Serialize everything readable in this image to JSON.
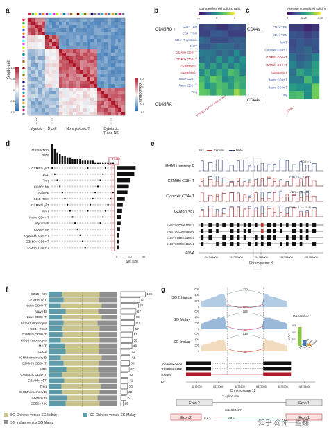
{
  "panels": {
    "a": "a",
    "b": "b",
    "c": "c",
    "d": "d",
    "e": "e",
    "f": "f",
    "g": "g"
  },
  "colors": {
    "red": "#b2182b",
    "blue": "#2166ac",
    "mid": "#f7f7f7",
    "yellow": "#c9c48e",
    "teal": "#5e9aa8",
    "grey": "#8f8f8f",
    "female": "#c0392b",
    "male": "#2a3d7a"
  },
  "chart_data": [
    {
      "id": "a",
      "type": "heatmap",
      "left_label": "Single-cell",
      "right_label": "Pseudobulk",
      "groups": [
        "Myeloid",
        "B cell",
        "Noncytotoxic T",
        "Cytotoxic T and NK"
      ],
      "colorbar_ticks": [
        "1.0",
        "0.5",
        "0",
        "-0.5",
        "-1.0"
      ],
      "blocks": [
        {
          "name": "Myeloid",
          "start": 0,
          "end": 5
        },
        {
          "name": "B cell",
          "start": 5,
          "end": 9
        },
        {
          "name": "Noncytotoxic T",
          "start": 9,
          "end": 20
        },
        {
          "name": "Cytotoxic T and NK",
          "start": 20,
          "end": 28
        }
      ]
    },
    {
      "id": "b",
      "type": "heatmap",
      "title": "log2 transformed splicing ratio",
      "colorbar_ticks": [
        "-1",
        "0",
        "1"
      ],
      "top_label": "CD45RO ↑",
      "bottom_label": "CD45RA ↑",
      "rows": [
        "CD4+ TEM",
        "CD4+ TCM",
        "CD4+ T cytotoxic",
        "MAIT",
        "GZMBhi CD8+ T",
        "GZMKhi CD8+ T",
        "GZMBhi γδT",
        "GZMKhi γδT",
        "Naive CD4+ T",
        "Naive CD8+ T",
        "Treg"
      ],
      "cols": [
        "c1",
        "c2",
        "c3",
        "c4",
        "c5",
        "c6",
        "c7",
        "c8"
      ],
      "x_annotation": "PTPRC exon 4 / exon 5 ratio"
    },
    {
      "id": "c",
      "type": "heatmap",
      "title": "Average normalized splicing",
      "colorbar_ticks": [
        "0",
        "0.25",
        "0.50"
      ],
      "top_label": "CD44s ↓",
      "bottom_label": "CD44s ↑",
      "rows": [
        "CD4+ TEM",
        "CD4+ TCM",
        "MAIT",
        "Cytotoxic CD4+ T",
        "GZMBhi CD8+ T",
        "GZMKhi CD8+ T",
        "GZMBhi γδT",
        "Naive CD4+ T",
        "Naive CD8+ T",
        "Treg"
      ],
      "cols": [
        "c1",
        "c2",
        "c3",
        "c4"
      ],
      "x_annotation": "CD44"
    },
    {
      "id": "d",
      "type": "bar",
      "ylabel": "Intersection size",
      "xlabel": "Set size",
      "highlight": "FLNA",
      "sets": [
        "GZMBhi γδT",
        "pDC",
        "Treg",
        "CD16+ NK",
        "Naive B",
        "CD4+ TEM",
        "GZMKhi γδT",
        "MAIT",
        "Naive CD4+ T",
        "Atypical B",
        "CD56+ NK",
        "Cytotoxic CD4+ T",
        "GZMKhi CD8+ T",
        "GZMBhi CD8+ T"
      ],
      "set_sizes": [
        28,
        26,
        20,
        18,
        16,
        12,
        9,
        8,
        7,
        6,
        5,
        4,
        3,
        3
      ],
      "intersection_sizes": [
        12,
        9,
        7,
        6,
        5,
        5,
        4,
        4,
        3,
        3,
        3,
        3,
        2,
        2,
        2,
        2,
        2,
        1,
        1,
        1,
        1,
        1,
        1,
        1,
        1
      ],
      "set_size_ticks": [
        "0",
        "20",
        "40"
      ]
    },
    {
      "id": "e",
      "type": "area",
      "legend": {
        "title": "Sex",
        "female": "Female",
        "male": "Male"
      },
      "tracks": [
        {
          "name": "IGHMhi memory B",
          "fdr": "FDR = 1"
        },
        {
          "name": "GZMBhi CD8+ T",
          "fdr": "FDR = 2.1 × 10⁻¹⁰"
        },
        {
          "name": "Cytotoxic CD4+ T",
          "fdr": "FDR = 4.6 × 10⁻⁸"
        },
        {
          "name": "GZMBhi γδT",
          "fdr": "FDR = 1.4 × 10⁻¹⁵"
        }
      ],
      "transcripts": [
        "ENST00000610817",
        "ENST00000498491",
        "ENST00000422373",
        "ENST00000415241"
      ],
      "gene": "FLNA",
      "xlabel": "Chromosome X",
      "x_ticks": [
        "154348000",
        "154350000",
        "154352000",
        "154354000",
        "154356000"
      ],
      "xlim": [
        154347000,
        154357000
      ]
    },
    {
      "id": "f",
      "type": "bar",
      "categories": [
        "CD16+ NK",
        "GZMBhi γδT",
        "Naive CD4+ T",
        "Naive B",
        "Naive CD8+ T",
        "CD14+ monocyte",
        "CD4+ TCM",
        "GZMBhi CD8+ T",
        "CD16+ monocyte",
        "MAIT",
        "cDC2",
        "IGHMhi memory B",
        "GZMKhi CD8+ T",
        "pDC",
        "Cytotoxic CD4+ T",
        "GZMKhi γδT",
        "Treg",
        "IGHMhi memory B",
        "Atypical B",
        "CD56+ NK"
      ],
      "counts": [
        108,
        83,
        77,
        67,
        60,
        60,
        57,
        51,
        50,
        49,
        42,
        41,
        38,
        37,
        32,
        31,
        30,
        28,
        22,
        10
      ],
      "series": [
        {
          "name": "SG Chinese versus SG Indian",
          "values": [
            0.55,
            0.52,
            0.6,
            0.48,
            0.58,
            0.5,
            0.55,
            0.53,
            0.57,
            0.5,
            0.49,
            0.6,
            0.52,
            0.47,
            0.55,
            0.51,
            0.58,
            0.55,
            0.45,
            0.5
          ]
        },
        {
          "name": "SG Chinese versus SG Malay",
          "values": [
            0.2,
            0.22,
            0.18,
            0.25,
            0.2,
            0.22,
            0.2,
            0.21,
            0.18,
            0.24,
            0.25,
            0.18,
            0.22,
            0.26,
            0.2,
            0.23,
            0.19,
            0.2,
            0.27,
            0.25
          ]
        },
        {
          "name": "SG Indian versus SG Malay",
          "values": [
            0.25,
            0.26,
            0.22,
            0.27,
            0.22,
            0.28,
            0.25,
            0.26,
            0.25,
            0.26,
            0.26,
            0.22,
            0.26,
            0.27,
            0.25,
            0.26,
            0.23,
            0.25,
            0.28,
            0.25
          ]
        }
      ]
    },
    {
      "id": "g",
      "type": "area",
      "groups": [
        "SG Chinese",
        "SG Malay",
        "SG Indian"
      ],
      "junction_top": [
        "110",
        "168",
        "235"
      ],
      "junction_bottom": [
        "162",
        "69",
        "15"
      ],
      "y_ticks": [
        "600",
        "400",
        "200",
        "0"
      ],
      "maf": {
        "snp": "rs11064437",
        "ylabel": "MAF",
        "ticks": [
          "0.3",
          "0.2",
          "0.1"
        ],
        "labels": [
          "SG Chinese",
          "SG Malay",
          "SG Indian"
        ],
        "values": [
          0.27,
          0.08,
          0.03
        ]
      },
      "transcripts": [
        "ENST00000524270",
        "ENST00000523102",
        "Unannotated"
      ],
      "gene": "SPSB2",
      "xlabel": "Chromosome 12",
      "x_ticks": [
        "6872900",
        "6873000",
        "6873100",
        "6873200",
        "6873300",
        "6873400"
      ],
      "xlim": [
        6872850,
        6873450
      ],
      "model": {
        "exon2": "Exon 2",
        "exon1": "Exon 1",
        "splice": "3′ splice site",
        "snp": "rs11064437",
        "seq_ref": "g a c",
        "seq_alt": "g a c"
      }
    }
  ],
  "watermark": "知乎 @你一些翻"
}
